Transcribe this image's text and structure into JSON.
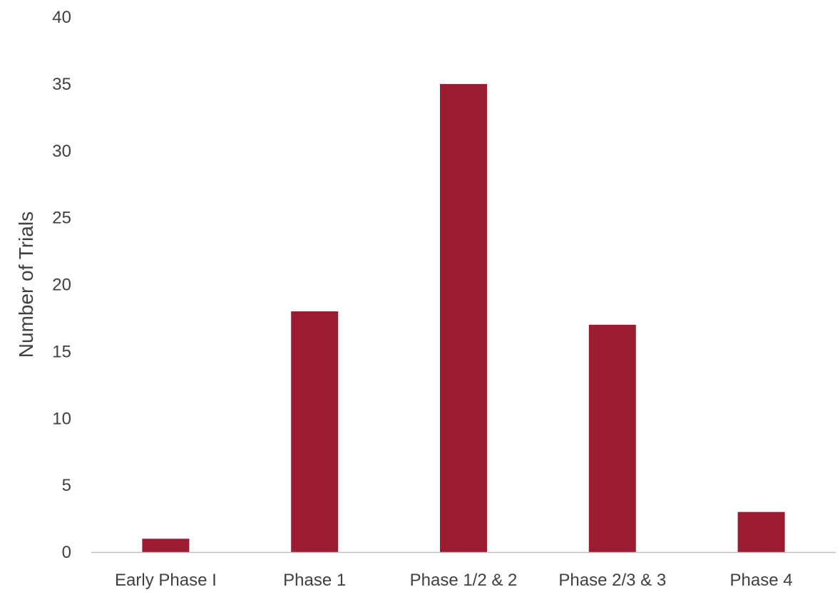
{
  "chart_data": {
    "type": "bar",
    "title": "",
    "xlabel": "",
    "ylabel": "Number of Trials",
    "categories": [
      "Early Phase I",
      "Phase 1",
      "Phase 1/2 & 2",
      "Phase 2/3 & 3",
      "Phase 4"
    ],
    "values": [
      1,
      18,
      35,
      17,
      3
    ],
    "ylim": [
      0,
      40
    ],
    "yticks": [
      "0",
      "5",
      "10",
      "15",
      "20",
      "25",
      "30",
      "35",
      "40"
    ],
    "grid": false,
    "legend": "none",
    "colors": {
      "bar": "#9B1B30",
      "axis": "#BFBFBF",
      "text": "#404040"
    }
  }
}
